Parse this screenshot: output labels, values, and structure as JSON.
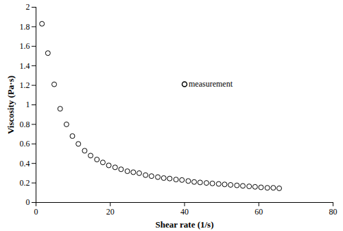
{
  "chart_data": {
    "type": "scatter",
    "x_label": "Shear rate (1/s)",
    "y_label": "Viscosity (Pa·s)",
    "xlim": [
      0,
      80
    ],
    "xticks": [
      0,
      20,
      40,
      60,
      80
    ],
    "ylim": [
      0,
      2
    ],
    "yticks": [
      0,
      0.2,
      0.4,
      0.6,
      0.8,
      1,
      1.2,
      1.4,
      1.6,
      1.8,
      2
    ],
    "grid": false,
    "legend": "center",
    "x": [
      1.6,
      3.2,
      4.9,
      6.5,
      8.2,
      9.8,
      11.4,
      13.1,
      14.7,
      16.4,
      18.0,
      19.6,
      21.3,
      22.9,
      24.6,
      26.2,
      27.8,
      29.5,
      31.1,
      32.8,
      34.4,
      36.0,
      37.7,
      39.3,
      41.0,
      42.6,
      44.2,
      45.9,
      47.5,
      49.2,
      50.8,
      52.4,
      54.1,
      55.7,
      57.4,
      59.0,
      60.6,
      62.3,
      63.9,
      65.5
    ],
    "series": [
      {
        "name": "measurement",
        "color": "#000000",
        "marker": "circle",
        "values": [
          1.83,
          1.53,
          1.21,
          0.96,
          0.8,
          0.68,
          0.6,
          0.53,
          0.48,
          0.44,
          0.41,
          0.38,
          0.36,
          0.34,
          0.32,
          0.31,
          0.3,
          0.28,
          0.27,
          0.26,
          0.25,
          0.245,
          0.235,
          0.23,
          0.22,
          0.21,
          0.205,
          0.2,
          0.195,
          0.19,
          0.185,
          0.18,
          0.175,
          0.17,
          0.165,
          0.16,
          0.155,
          0.15,
          0.15,
          0.145
        ]
      }
    ]
  }
}
